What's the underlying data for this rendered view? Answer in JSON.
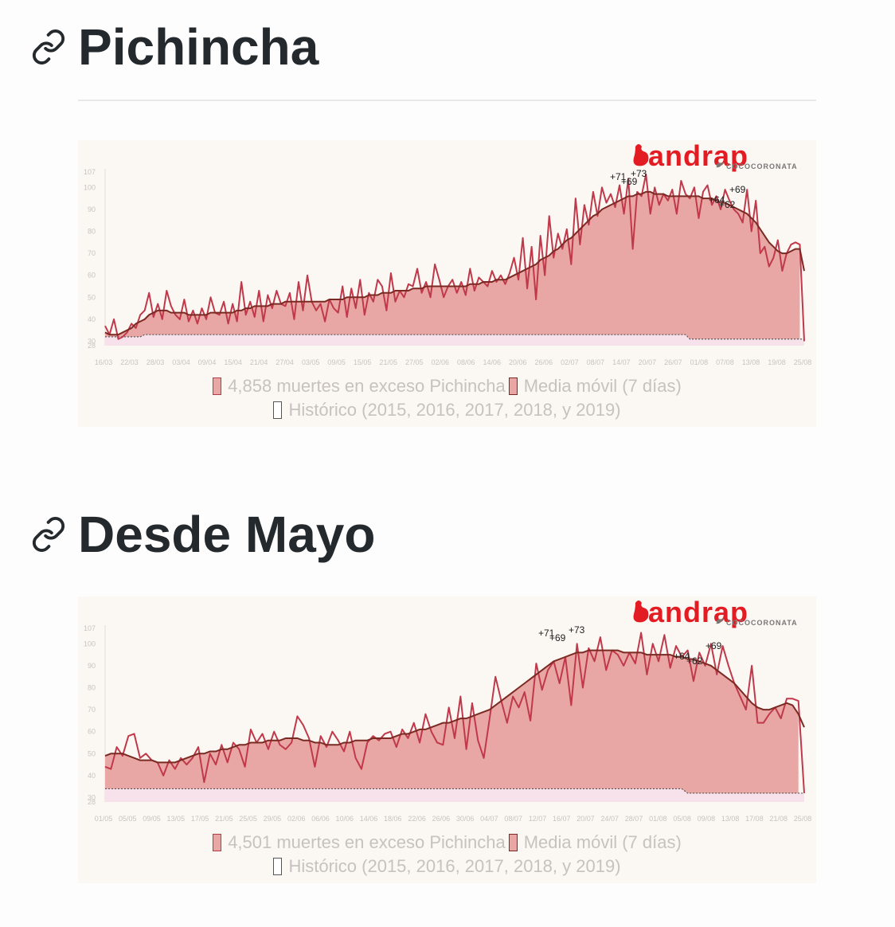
{
  "sections": [
    {
      "title": "Pichincha"
    },
    {
      "title": "Desde Mayo"
    }
  ],
  "brand": {
    "logo_text": "andrap",
    "handle": "COCOCORONATA",
    "accent": "#e31c23"
  },
  "colors": {
    "area": "#e8a7a4",
    "daily_line": "#c0394b",
    "moving_avg": "#7a2a22",
    "historic": "#f7e1ea",
    "card_bg": "#fbf7f3"
  },
  "chart_data": [
    {
      "type": "area",
      "y_ticks": [
        "107",
        "100",
        "90",
        "80",
        "70",
        "60",
        "50",
        "40",
        "30",
        "28"
      ],
      "x_ticks": [
        "16/03",
        "22/03",
        "28/03",
        "03/04",
        "09/04",
        "15/04",
        "21/04",
        "27/04",
        "03/05",
        "09/05",
        "15/05",
        "21/05",
        "27/05",
        "02/06",
        "08/06",
        "14/06",
        "20/06",
        "26/06",
        "02/07",
        "08/07",
        "14/07",
        "20/07",
        "26/07",
        "01/08",
        "07/08",
        "13/08",
        "19/08",
        "25/08"
      ],
      "ylim": [
        28,
        107
      ],
      "annotations": [
        "+71",
        "+69",
        "+73",
        "+64",
        "+62",
        "+69"
      ],
      "series": [
        {
          "name": "4,858 muertes en exceso Pichincha",
          "values": [
            37,
            33,
            40,
            31,
            32,
            34,
            38,
            36,
            42,
            44,
            52,
            41,
            47,
            40,
            53,
            46,
            42,
            40,
            49,
            39,
            44,
            38,
            45,
            40,
            50,
            43,
            42,
            48,
            38,
            47,
            39,
            57,
            42,
            48,
            41,
            53,
            39,
            51,
            45,
            53,
            47,
            46,
            52,
            40,
            57,
            44,
            60,
            48,
            44,
            47,
            39,
            49,
            45,
            43,
            55,
            41,
            54,
            45,
            58,
            42,
            52,
            48,
            58,
            55,
            44,
            61,
            48,
            53,
            50,
            56,
            55,
            63,
            52,
            57,
            50,
            65,
            58,
            50,
            55,
            58,
            52,
            57,
            51,
            63,
            53,
            59,
            57,
            55,
            62,
            57,
            60,
            56,
            61,
            68,
            58,
            77,
            54,
            73,
            49,
            78,
            60,
            87,
            68,
            79,
            72,
            81,
            65,
            95,
            74,
            92,
            83,
            98,
            87,
            100,
            93,
            97,
            91,
            101,
            88,
            104,
            72,
            98,
            96,
            106,
            88,
            100,
            92,
            97,
            94,
            99,
            88,
            103,
            97,
            95,
            100,
            86,
            98,
            101,
            92,
            96,
            90,
            99,
            94,
            90,
            88,
            84,
            99,
            80,
            94,
            70,
            73,
            64,
            68,
            76,
            62,
            70,
            74,
            75,
            74,
            30
          ]
        },
        {
          "name": "Media móvil (7 días)",
          "values": [
            34,
            33,
            33,
            33,
            34,
            35,
            36,
            38,
            39,
            40,
            42,
            43,
            44,
            44,
            44,
            43,
            43,
            43,
            43,
            42,
            42,
            42,
            42,
            42,
            43,
            43,
            43,
            43,
            43,
            43,
            44,
            44,
            45,
            45,
            46,
            46,
            46,
            46,
            47,
            47,
            47,
            48,
            48,
            48,
            48,
            48,
            48,
            48,
            48,
            48,
            48,
            49,
            49,
            49,
            49,
            50,
            50,
            50,
            50,
            50,
            51,
            51,
            51,
            52,
            52,
            52,
            53,
            53,
            53,
            53,
            54,
            54,
            54,
            55,
            55,
            55,
            55,
            55,
            55,
            55,
            55,
            55,
            55,
            56,
            56,
            56,
            57,
            57,
            57,
            58,
            58,
            58,
            59,
            60,
            61,
            62,
            63,
            64,
            65,
            67,
            68,
            69,
            71,
            72,
            74,
            76,
            77,
            79,
            81,
            83,
            85,
            87,
            88,
            90,
            91,
            92,
            93,
            94,
            95,
            96,
            96,
            97,
            97,
            98,
            98,
            97,
            97,
            97,
            96,
            96,
            96,
            96,
            96,
            96,
            96,
            96,
            95,
            95,
            95,
            94,
            93,
            93,
            92,
            91,
            90,
            89,
            88,
            86,
            84,
            81,
            78,
            75,
            73,
            71,
            70,
            70,
            71,
            72,
            72,
            62
          ]
        },
        {
          "name": "Histórico (2015, 2016, 2017, 2018, y 2019)",
          "values": [
            32,
            32,
            32,
            32,
            32,
            32,
            32,
            32,
            32,
            33,
            33,
            33,
            33,
            33,
            33,
            33,
            33,
            33,
            33,
            33,
            33,
            33,
            33,
            33,
            33,
            33,
            33,
            33,
            33,
            33,
            33,
            33,
            33,
            33,
            33,
            33,
            33,
            33,
            33,
            33,
            33,
            33,
            33,
            33,
            33,
            33,
            33,
            33,
            33,
            33,
            33,
            33,
            33,
            33,
            33,
            33,
            33,
            33,
            33,
            33,
            33,
            33,
            33,
            33,
            33,
            33,
            33,
            33,
            33,
            33,
            33,
            33,
            33,
            33,
            33,
            33,
            33,
            33,
            33,
            33,
            33,
            33,
            33,
            33,
            33,
            33,
            33,
            33,
            33,
            33,
            33,
            33,
            33,
            33,
            33,
            33,
            33,
            33,
            33,
            33,
            33,
            33,
            33,
            33,
            33,
            33,
            33,
            33,
            33,
            33,
            33,
            33,
            33,
            33,
            33,
            33,
            33,
            33,
            33,
            33,
            33,
            33,
            33,
            33,
            33,
            33,
            33,
            33,
            33,
            33,
            33,
            33,
            33,
            31,
            31,
            31,
            31,
            31,
            31,
            31,
            31,
            31,
            31,
            31,
            31,
            31,
            31,
            31,
            31,
            31,
            31,
            31,
            31,
            31,
            31,
            31,
            31,
            31,
            31,
            31
          ]
        }
      ],
      "legend": [
        "4,858 muertes en exceso Pichincha",
        "Media móvil (7 días)",
        "Histórico (2015, 2016, 2017, 2018, y 2019)"
      ]
    },
    {
      "type": "area",
      "y_ticks": [
        "107",
        "100",
        "90",
        "80",
        "70",
        "60",
        "50",
        "40",
        "30",
        "28"
      ],
      "x_ticks": [
        "01/05",
        "05/05",
        "09/05",
        "13/05",
        "17/05",
        "21/05",
        "25/05",
        "29/05",
        "02/06",
        "06/06",
        "10/06",
        "14/06",
        "18/06",
        "22/06",
        "26/06",
        "30/06",
        "04/07",
        "08/07",
        "12/07",
        "16/07",
        "20/07",
        "24/07",
        "28/07",
        "01/08",
        "05/08",
        "09/08",
        "13/08",
        "17/08",
        "21/08",
        "25/08"
      ],
      "ylim": [
        28,
        107
      ],
      "annotations": [
        "+71",
        "+69",
        "+73",
        "+64",
        "+62",
        "+69"
      ],
      "series": [
        {
          "name": "4,501 muertes en exceso Pichincha",
          "values": [
            44,
            43,
            53,
            49,
            58,
            59,
            48,
            50,
            47,
            46,
            40,
            47,
            43,
            48,
            45,
            48,
            53,
            37,
            50,
            45,
            54,
            46,
            55,
            52,
            44,
            61,
            55,
            59,
            52,
            60,
            54,
            52,
            55,
            67,
            63,
            57,
            44,
            58,
            53,
            60,
            56,
            51,
            60,
            48,
            43,
            55,
            58,
            56,
            59,
            60,
            53,
            61,
            57,
            64,
            55,
            68,
            60,
            55,
            54,
            71,
            57,
            76,
            52,
            73,
            56,
            48,
            66,
            85,
            74,
            64,
            76,
            71,
            78,
            65,
            91,
            79,
            88,
            92,
            82,
            94,
            72,
            100,
            80,
            98,
            92,
            103,
            88,
            97,
            95,
            90,
            96,
            91,
            105,
            86,
            100,
            92,
            104,
            89,
            99,
            94,
            97,
            83,
            96,
            90,
            100,
            86,
            99,
            90,
            82,
            76,
            70,
            90,
            64,
            64,
            68,
            71,
            66,
            75,
            75,
            74,
            32
          ]
        },
        {
          "name": "Media móvil (7 días)",
          "values": [
            49,
            50,
            50,
            50,
            49,
            48,
            47,
            47,
            47,
            46,
            46,
            46,
            46,
            47,
            48,
            49,
            50,
            50,
            51,
            51,
            52,
            52,
            53,
            54,
            54,
            55,
            55,
            55,
            56,
            56,
            56,
            57,
            57,
            57,
            56,
            56,
            55,
            55,
            54,
            54,
            54,
            55,
            55,
            56,
            56,
            56,
            57,
            57,
            57,
            57,
            58,
            59,
            59,
            60,
            61,
            61,
            62,
            63,
            64,
            64,
            65,
            66,
            66,
            67,
            68,
            69,
            70,
            72,
            74,
            76,
            78,
            80,
            82,
            84,
            86,
            88,
            90,
            92,
            93,
            94,
            95,
            96,
            96,
            97,
            97,
            97,
            97,
            97,
            97,
            96,
            96,
            96,
            96,
            95,
            95,
            95,
            95,
            95,
            94,
            94,
            93,
            93,
            92,
            91,
            90,
            88,
            86,
            84,
            82,
            79,
            76,
            73,
            71,
            70,
            70,
            71,
            72,
            73,
            72,
            68,
            62
          ]
        },
        {
          "name": "Histórico (2015, 2016, 2017, 2018, y 2019)",
          "values": [
            34,
            34,
            34,
            34,
            34,
            34,
            34,
            34,
            34,
            34,
            34,
            34,
            34,
            34,
            34,
            34,
            34,
            34,
            34,
            34,
            34,
            34,
            34,
            34,
            34,
            34,
            34,
            34,
            34,
            34,
            34,
            34,
            34,
            34,
            34,
            34,
            34,
            34,
            34,
            34,
            34,
            34,
            34,
            34,
            34,
            34,
            34,
            34,
            34,
            34,
            34,
            34,
            34,
            34,
            34,
            34,
            34,
            34,
            34,
            34,
            34,
            34,
            34,
            34,
            34,
            34,
            34,
            34,
            34,
            34,
            34,
            34,
            34,
            34,
            34,
            34,
            34,
            34,
            34,
            34,
            34,
            34,
            34,
            34,
            34,
            34,
            34,
            34,
            34,
            34,
            34,
            34,
            34,
            34,
            34,
            34,
            34,
            34,
            34,
            34,
            32,
            32,
            32,
            32,
            32,
            32,
            32,
            32,
            32,
            32,
            32,
            32,
            32,
            32,
            32,
            32,
            32,
            32,
            32,
            32,
            32
          ]
        }
      ],
      "legend": [
        "4,501 muertes en exceso Pichincha",
        "Media móvil (7 días)",
        "Histórico (2015, 2016, 2017, 2018, y 2019)"
      ]
    }
  ]
}
